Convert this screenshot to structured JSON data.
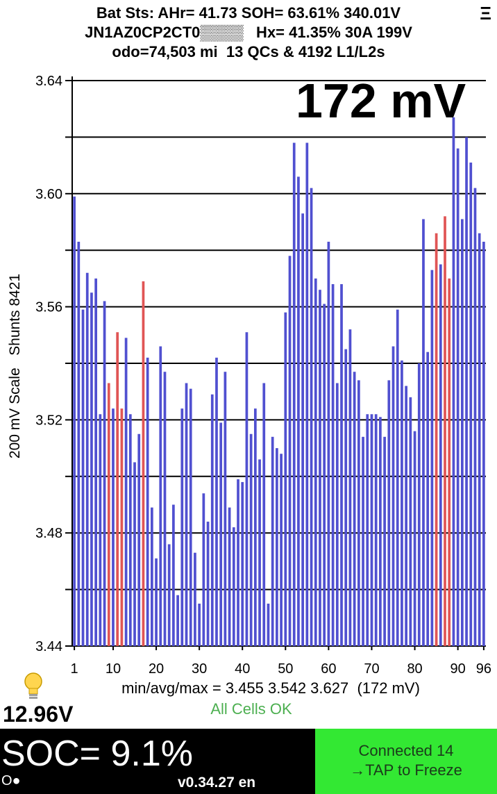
{
  "header": {
    "line1": "Bat Sts: AHr= 41.73 SOH= 63.61% 340.01V",
    "line2": "JN1AZ0CP2CT0▒▒▒▒   Hx= 41.35% 30A 199V",
    "line3": "odo=74,503 mi  13 QCs & 4192 L1/L2s"
  },
  "menu_icon": "Ξ",
  "big_diff": "172 mV",
  "y_axis_title": "200 mV Scale   Shunts 8421",
  "stats_line": "min/avg/max = 3.455 3.542 3.627  (172 mV)",
  "cells_status": "All Cells OK",
  "aux_voltage": "12.96V",
  "soc": "SOC= 9.1%",
  "indicator": "O●",
  "version": "v0.34.27 en",
  "status_button": {
    "line1": "Connected 14",
    "line2": "→TAP to Freeze"
  },
  "colors": {
    "normal_bar": "#5050d0",
    "shunt_bar": "#e05555",
    "button_bg": "#33e833",
    "ok_text": "#4caf50"
  },
  "chart_data": {
    "type": "bar",
    "ylim": [
      3.44,
      3.64
    ],
    "yticks": [
      "3.44",
      "3.48",
      "3.52",
      "3.56",
      "3.60",
      "3.64"
    ],
    "xtick_labels": [
      "1",
      "10",
      "20",
      "30",
      "40",
      "50",
      "60",
      "70",
      "80",
      "90",
      "96"
    ],
    "xtick_cells": [
      1,
      10,
      20,
      30,
      40,
      50,
      60,
      70,
      80,
      90,
      96
    ],
    "series": [
      {
        "values": [
          3.599,
          3.583,
          3.559,
          3.572,
          3.565,
          3.57,
          3.522,
          3.562,
          3.533,
          3.524,
          3.551,
          3.524,
          3.549,
          3.522,
          3.505,
          3.515,
          3.569,
          3.542,
          3.489,
          3.471,
          3.546,
          3.537,
          3.476,
          3.49,
          3.458,
          3.524,
          3.533,
          3.531,
          3.473,
          3.455,
          3.494,
          3.484,
          3.529,
          3.542,
          3.519,
          3.537,
          3.489,
          3.482,
          3.499,
          3.498,
          3.551,
          3.515,
          3.524,
          3.506,
          3.533,
          3.455,
          3.514,
          3.51,
          3.508,
          3.558,
          3.578,
          3.618,
          3.606,
          3.593,
          3.618,
          3.602,
          3.57,
          3.566,
          3.561,
          3.583,
          3.568,
          3.533,
          3.568,
          3.545,
          3.552,
          3.537,
          3.534,
          3.514,
          3.522,
          3.522,
          3.522,
          3.521,
          3.514,
          3.534,
          3.546,
          3.559,
          3.541,
          3.532,
          3.528,
          3.516,
          3.54,
          3.591,
          3.544,
          3.573,
          3.586,
          3.575,
          3.592,
          3.57,
          3.627,
          3.616,
          3.591,
          3.62,
          3.611,
          3.602,
          3.586,
          3.583
        ],
        "highlighted_cells": [
          9,
          11,
          12,
          17,
          85,
          87,
          88
        ]
      }
    ]
  }
}
